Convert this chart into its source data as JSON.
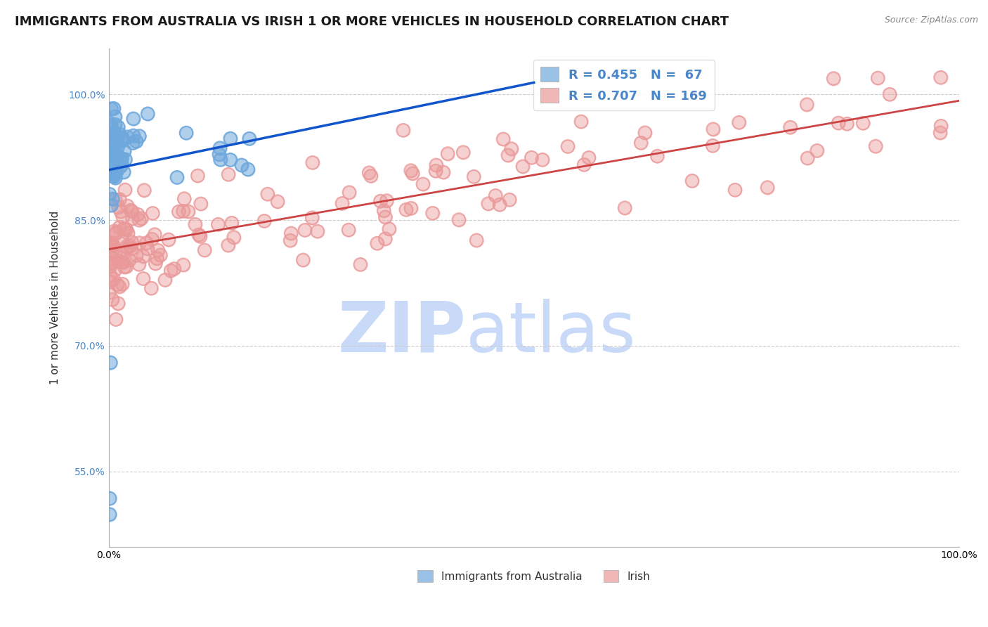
{
  "title": "IMMIGRANTS FROM AUSTRALIA VS IRISH 1 OR MORE VEHICLES IN HOUSEHOLD CORRELATION CHART",
  "source": "Source: ZipAtlas.com",
  "ylabel": "1 or more Vehicles in Household",
  "xlim": [
    0.0,
    1.0
  ],
  "ylim": [
    0.46,
    1.055
  ],
  "yticks": [
    0.55,
    0.7,
    0.85,
    1.0
  ],
  "ytick_labels": [
    "55.0%",
    "70.0%",
    "85.0%",
    "100.0%"
  ],
  "xticks": [
    0.0,
    0.2,
    0.4,
    0.6,
    0.8,
    1.0
  ],
  "xtick_labels": [
    "0.0%",
    "",
    "",
    "",
    "",
    "100.0%"
  ],
  "legend_labels": [
    "Immigrants from Australia",
    "Irish"
  ],
  "australia_R": 0.455,
  "australia_N": 67,
  "irish_R": 0.707,
  "irish_N": 169,
  "australia_color": "#6fa8dc",
  "irish_color": "#ea9999",
  "australia_line_color": "#1155cc",
  "irish_line_color": "#cc4444",
  "watermark_zip": "ZIP",
  "watermark_atlas": "atlas",
  "watermark_color": "#c9daf8",
  "title_fontsize": 13,
  "axis_label_fontsize": 11,
  "tick_fontsize": 10,
  "legend_fontsize": 13,
  "background_color": "#ffffff",
  "grid_color": "#cccccc",
  "legend_R_color": "#4a86c8",
  "ytick_color": "#4a86c8"
}
